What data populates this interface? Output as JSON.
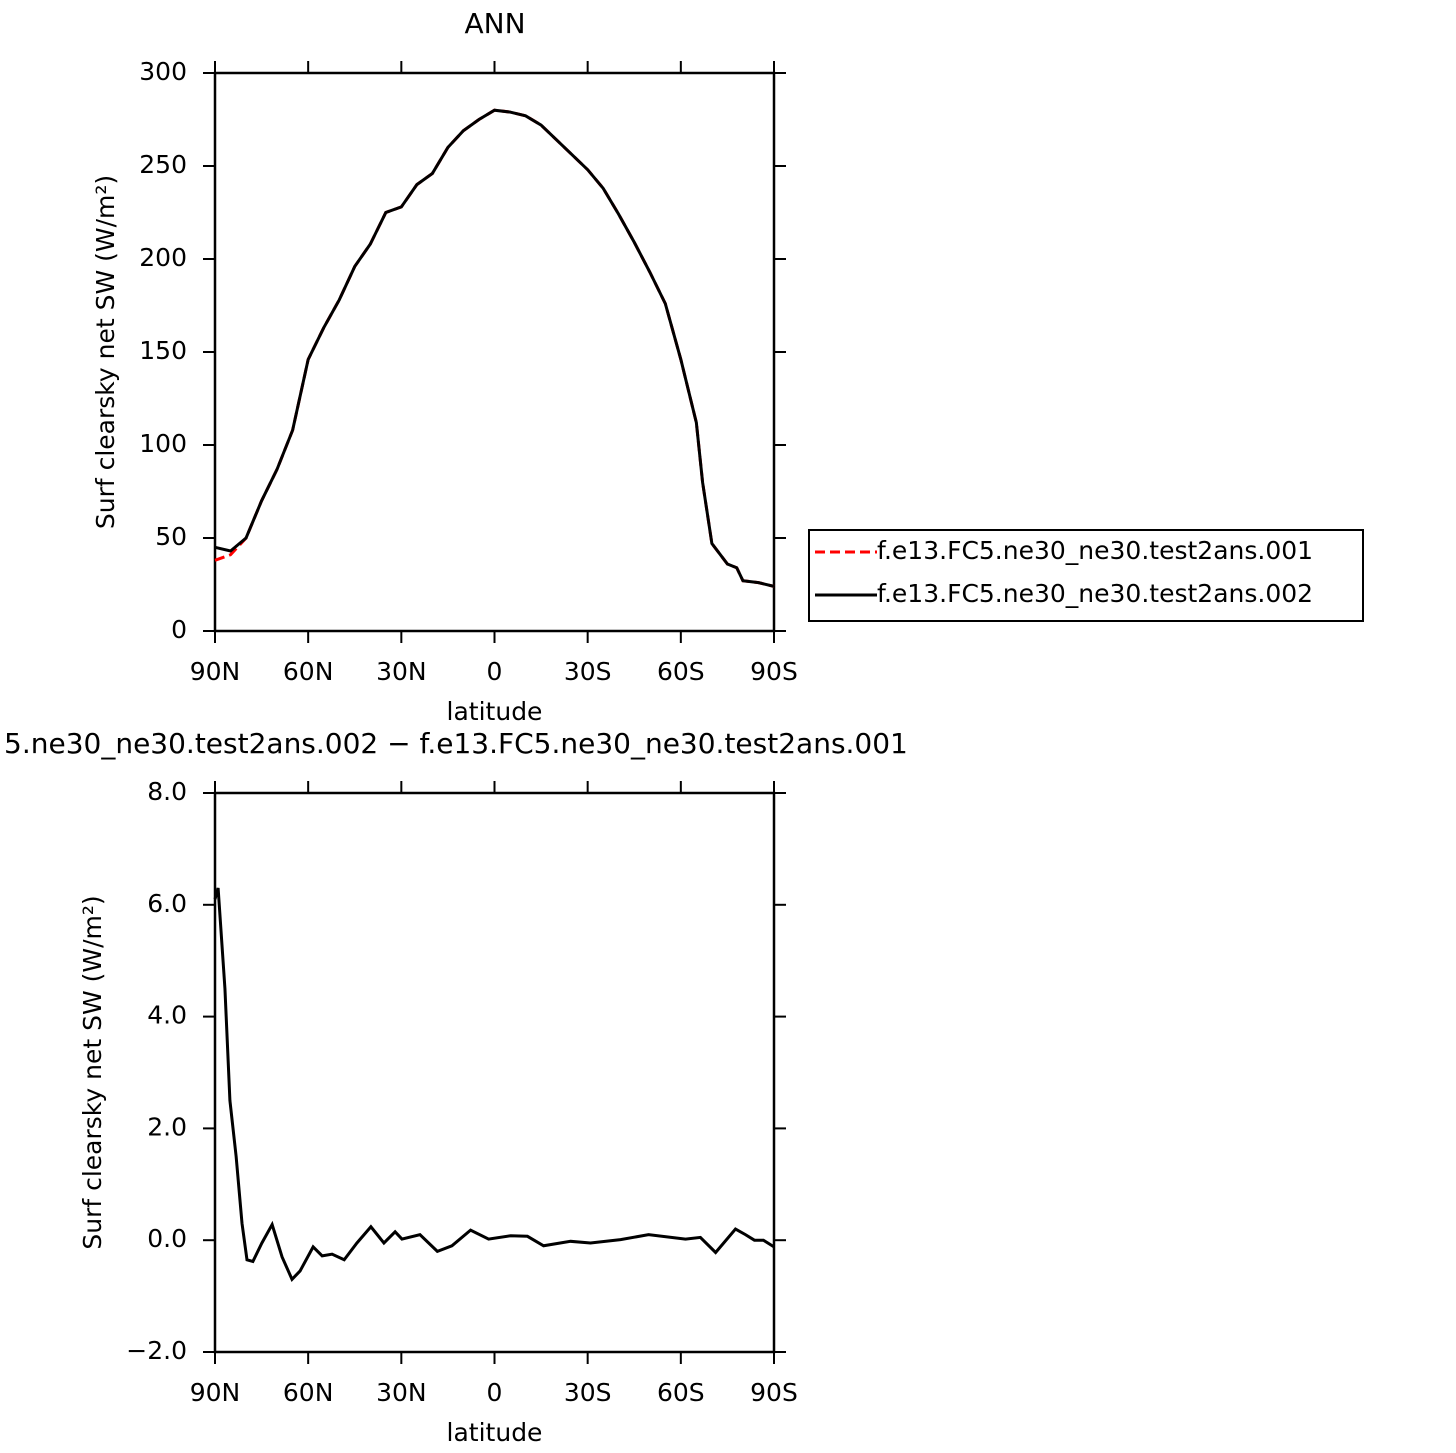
{
  "chart_data": [
    {
      "type": "line",
      "title": "ANN",
      "xlabel": "latitude",
      "ylabel": "Surf clearsky net SW (W/m²)",
      "x": [
        90,
        85,
        80,
        75,
        70,
        65,
        60,
        55,
        50,
        45,
        40,
        35,
        30,
        25,
        20,
        15,
        10,
        5,
        0,
        -5,
        -10,
        -15,
        -20,
        -25,
        -30,
        -35,
        -40,
        -45,
        -50,
        -55,
        -60,
        -65,
        -67,
        -70,
        -75,
        -78,
        -80,
        -85,
        -90
      ],
      "series": [
        {
          "name": "f.e13.FC5.ne30_ne30.test2ans.001",
          "color": "#ff0000",
          "dash": true,
          "values": [
            38,
            41,
            50,
            70,
            87,
            108,
            146,
            163,
            178,
            196,
            208,
            225,
            228,
            240,
            246,
            260,
            269,
            275,
            280,
            279,
            277,
            272,
            264,
            256,
            248,
            238,
            224,
            209,
            193,
            176,
            146,
            112,
            80,
            47,
            36,
            34,
            27,
            26,
            24
          ]
        },
        {
          "name": "f.e13.FC5.ne30_ne30.test2ans.002",
          "color": "#000000",
          "dash": false,
          "values": [
            45,
            43,
            50,
            70,
            87,
            108,
            146,
            163,
            178,
            196,
            208,
            225,
            228,
            240,
            246,
            260,
            269,
            275,
            280,
            279,
            277,
            272,
            264,
            256,
            248,
            238,
            224,
            209,
            193,
            176,
            146,
            112,
            80,
            47,
            36,
            34,
            27,
            26,
            24
          ]
        }
      ],
      "xlim": [
        90,
        -90
      ],
      "xticks": [
        {
          "value": 90,
          "label": "90N"
        },
        {
          "value": 60,
          "label": "60N"
        },
        {
          "value": 30,
          "label": "30N"
        },
        0,
        {
          "value": -30,
          "label": "30S"
        },
        {
          "value": -60,
          "label": "60S"
        },
        {
          "value": -90,
          "label": "90S"
        }
      ],
      "ylim": [
        0,
        300
      ],
      "yticks": [
        0,
        50,
        100,
        150,
        200,
        250,
        300
      ],
      "legend": "right"
    },
    {
      "type": "line",
      "title": "5.ne30_ne30.test2ans.002 − f.e13.FC5.ne30_ne30.test2ans.001",
      "xlabel": "latitude",
      "ylabel": "Surf clearsky net SW (W/m²)",
      "x": [
        90,
        89,
        86.8,
        85.2,
        83.2,
        81.3,
        79.7,
        77.8,
        74.9,
        71.6,
        68.4,
        65.2,
        62.6,
        58.4,
        55.5,
        52.3,
        48.4,
        44.3,
        39.8,
        35.6,
        32,
        29.8,
        24,
        18.4,
        13.7,
        7.7,
        1.9,
        -5.2,
        -10.6,
        -15.8,
        -24.5,
        -30.9,
        -40.6,
        -49.6,
        -61.5,
        -66.3,
        -71.2,
        -77.6,
        -80.8,
        -83.7,
        -86.6,
        -90
      ],
      "series": [
        {
          "color": "#000000",
          "dash": false,
          "values": [
            6.1,
            6.3,
            4.5,
            2.5,
            1.5,
            0.3,
            -0.35,
            -0.38,
            -0.05,
            0.28,
            -0.3,
            -0.7,
            -0.55,
            -0.12,
            -0.28,
            -0.25,
            -0.35,
            -0.05,
            0.24,
            -0.05,
            0.15,
            0.02,
            0.1,
            -0.2,
            -0.1,
            0.18,
            0.02,
            0.08,
            0.07,
            -0.1,
            -0.02,
            -0.05,
            0.01,
            0.1,
            0.02,
            0.05,
            -0.22,
            0.2,
            0.1,
            0.0,
            0.0,
            -0.12
          ]
        }
      ],
      "xlim": [
        90,
        -90
      ],
      "xticks": [
        {
          "value": 90,
          "label": "90N"
        },
        {
          "value": 60,
          "label": "60N"
        },
        {
          "value": 30,
          "label": "30N"
        },
        0,
        {
          "value": -30,
          "label": "30S"
        },
        {
          "value": -60,
          "label": "60S"
        },
        {
          "value": -90,
          "label": "90S"
        }
      ],
      "ylim": [
        -2,
        8
      ],
      "yticks": [
        {
          "value": -2,
          "label": "−2.0"
        },
        {
          "value": 0,
          "label": "0.0"
        },
        {
          "value": 2,
          "label": "2.0"
        },
        {
          "value": 4,
          "label": "4.0"
        },
        {
          "value": 6,
          "label": "6.0"
        },
        {
          "value": 8,
          "label": "8.0"
        }
      ]
    }
  ]
}
